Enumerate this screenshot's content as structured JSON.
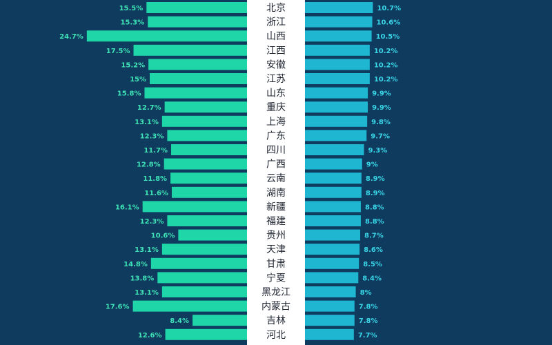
{
  "colors": {
    "background": "#0e3b5e",
    "left_bar": "#1fd6a8",
    "right_bar": "#1fb6d2",
    "center_band": "#ffffff",
    "left_label": "#3fe3b6",
    "right_label": "#3ad6e8",
    "category_text": "#1e2430"
  },
  "chart_data": {
    "type": "bar",
    "orientation": "horizontal",
    "layout": "back-to-back",
    "title": "",
    "categories": [
      "北京",
      "浙江",
      "山西",
      "江西",
      "安徽",
      "江苏",
      "山东",
      "重庆",
      "上海",
      "广东",
      "四川",
      "广西",
      "云南",
      "湖南",
      "新疆",
      "福建",
      "贵州",
      "天津",
      "甘肃",
      "宁夏",
      "黑龙江",
      "内蒙古",
      "吉林",
      "河北"
    ],
    "series": [
      {
        "side": "left",
        "values": [
          15.5,
          15.3,
          24.7,
          17.5,
          15.2,
          15,
          15.8,
          12.7,
          13.1,
          12.3,
          11.7,
          12.8,
          11.8,
          11.6,
          16.1,
          12.3,
          10.6,
          13.1,
          14.8,
          13.8,
          13.1,
          17.6,
          8.4,
          12.6
        ],
        "labels": [
          "15.5%",
          "15.3%",
          "24.7%",
          "17.5%",
          "15.2%",
          "15%",
          "15.8%",
          "12.7%",
          "13.1%",
          "12.3%",
          "11.7%",
          "12.8%",
          "11.8%",
          "11.6%",
          "16.1%",
          "12.3%",
          "10.6%",
          "13.1%",
          "14.8%",
          "13.8%",
          "13.1%",
          "17.6%",
          "8.4%",
          "12.6%"
        ]
      },
      {
        "side": "right",
        "values": [
          10.7,
          10.6,
          10.5,
          10.2,
          10.2,
          10.2,
          9.9,
          9.9,
          9.8,
          9.7,
          9.3,
          9,
          8.9,
          8.9,
          8.8,
          8.8,
          8.7,
          8.6,
          8.5,
          8.4,
          8,
          7.8,
          7.8,
          7.7
        ],
        "labels": [
          "10.7%",
          "10.6%",
          "10.5%",
          "10.2%",
          "10.2%",
          "10.2%",
          "9.9%",
          "9.9%",
          "9.8%",
          "9.7%",
          "9.3%",
          "9%",
          "8.9%",
          "8.9%",
          "8.8%",
          "8.8%",
          "8.7%",
          "8.6%",
          "8.5%",
          "8.4%",
          "8%",
          "7.8%",
          "7.8%",
          "7.7%"
        ]
      }
    ]
  }
}
